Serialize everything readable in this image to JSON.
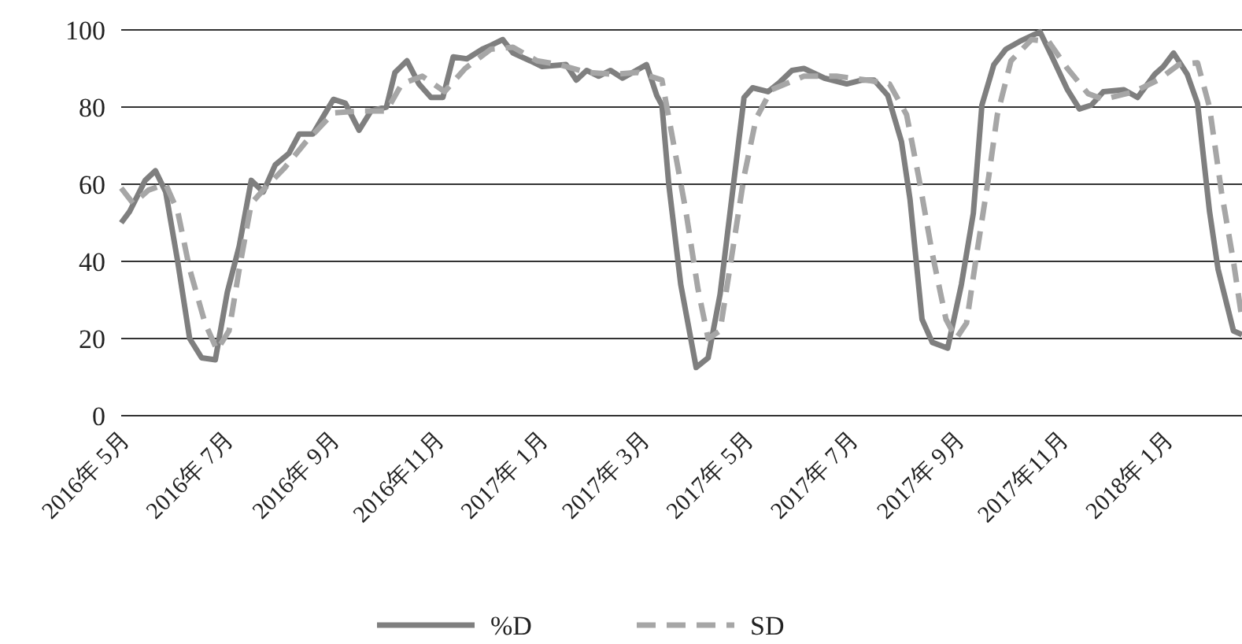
{
  "chart_data": {
    "type": "line",
    "xlim": [
      "2016-05-01",
      "2018-02-15"
    ],
    "ylim": [
      0,
      100
    ],
    "yticks": [
      0,
      20,
      40,
      60,
      80,
      100
    ],
    "grid": "y",
    "legend": "bottom",
    "xticks": [
      {
        "value": "2016-05-01",
        "label": "2016年 5月"
      },
      {
        "value": "2016-07-01",
        "label": "2016年 7月"
      },
      {
        "value": "2016-09-01",
        "label": "2016年 9月"
      },
      {
        "value": "2016-11-01",
        "label": "2016年11月"
      },
      {
        "value": "2017-01-01",
        "label": "2017年 1月"
      },
      {
        "value": "2017-03-01",
        "label": "2017年 3月"
      },
      {
        "value": "2017-05-01",
        "label": "2017年 5月"
      },
      {
        "value": "2017-07-01",
        "label": "2017年 7月"
      },
      {
        "value": "2017-09-01",
        "label": "2017年 9月"
      },
      {
        "value": "2017-11-01",
        "label": "2017年11月"
      },
      {
        "value": "2018-01-01",
        "label": "2018年 1月"
      }
    ],
    "series": [
      {
        "name": "%D",
        "color": "#7f7f7f",
        "line_style": "solid",
        "x": [
          "2016-05-01",
          "2016-05-06",
          "2016-05-15",
          "2016-05-21",
          "2016-05-27",
          "2016-06-03",
          "2016-06-10",
          "2016-06-17",
          "2016-06-25",
          "2016-07-02",
          "2016-07-09",
          "2016-07-16",
          "2016-07-23",
          "2016-07-30",
          "2016-08-07",
          "2016-08-13",
          "2016-08-21",
          "2016-08-29",
          "2016-09-02",
          "2016-09-09",
          "2016-09-17",
          "2016-09-24",
          "2016-10-03",
          "2016-10-08",
          "2016-10-15",
          "2016-10-22",
          "2016-10-29",
          "2016-11-05",
          "2016-11-11",
          "2016-11-19",
          "2016-11-28",
          "2016-12-03",
          "2016-12-10",
          "2016-12-16",
          "2016-12-26",
          "2017-01-02",
          "2017-01-16",
          "2017-01-22",
          "2017-01-28",
          "2017-02-04",
          "2017-02-11",
          "2017-02-18",
          "2017-03-04",
          "2017-03-10",
          "2017-03-13",
          "2017-03-17",
          "2017-03-24",
          "2017-04-02",
          "2017-04-09",
          "2017-04-16",
          "2017-04-30",
          "2017-05-05",
          "2017-05-14",
          "2017-05-21",
          "2017-05-28",
          "2017-06-04",
          "2017-06-16",
          "2017-06-29",
          "2017-07-08",
          "2017-07-15",
          "2017-07-23",
          "2017-07-31",
          "2017-08-05",
          "2017-08-12",
          "2017-08-18",
          "2017-08-27",
          "2017-09-04",
          "2017-09-11",
          "2017-09-16",
          "2017-09-23",
          "2017-09-30",
          "2017-10-08",
          "2017-10-20",
          "2017-10-27",
          "2017-11-05",
          "2017-11-12",
          "2017-11-19",
          "2017-11-26",
          "2017-12-08",
          "2017-12-16",
          "2017-12-26",
          "2017-12-31",
          "2018-01-06",
          "2018-01-14",
          "2018-01-20",
          "2018-01-27",
          "2018-02-01",
          "2018-02-10",
          "2018-02-15"
        ],
        "values": [
          50,
          53,
          61,
          63.5,
          58,
          40,
          20,
          15,
          14.5,
          32,
          44,
          61,
          58,
          65,
          68,
          73,
          73,
          79,
          82,
          81,
          74,
          79,
          80,
          89,
          92,
          86,
          82.5,
          82.5,
          93,
          92.5,
          95,
          96,
          97.5,
          94,
          92,
          90.5,
          91,
          87,
          89.5,
          88,
          89.5,
          87.5,
          91,
          83,
          80.5,
          60,
          34,
          12.5,
          15,
          31.5,
          82.5,
          85,
          84,
          86.5,
          89.5,
          90,
          87.5,
          86,
          87,
          87,
          83,
          71,
          56,
          25,
          19,
          17.5,
          34,
          52.5,
          80.5,
          91,
          95,
          97,
          99.5,
          93,
          84.5,
          79.5,
          80.5,
          84,
          84.5,
          82.5,
          88.5,
          90.5,
          94,
          88.5,
          81,
          53,
          38,
          22,
          21
        ]
      },
      {
        "name": "SD",
        "color": "#a6a6a6",
        "line_style": "dashed",
        "x": [
          "2016-05-01",
          "2016-05-08",
          "2016-05-17",
          "2016-05-27",
          "2016-06-03",
          "2016-06-10",
          "2016-06-19",
          "2016-06-26",
          "2016-07-03",
          "2016-07-09",
          "2016-07-16",
          "2016-07-24",
          "2016-08-04",
          "2016-08-17",
          "2016-09-02",
          "2016-09-19",
          "2016-10-03",
          "2016-10-12",
          "2016-10-24",
          "2016-11-06",
          "2016-11-18",
          "2016-12-03",
          "2016-12-16",
          "2016-12-30",
          "2017-01-12",
          "2017-01-28",
          "2017-02-13",
          "2017-02-27",
          "2017-03-13",
          "2017-03-20",
          "2017-03-27",
          "2017-04-03",
          "2017-04-09",
          "2017-04-16",
          "2017-04-23",
          "2017-04-30",
          "2017-05-07",
          "2017-05-16",
          "2017-06-04",
          "2017-06-23",
          "2017-07-11",
          "2017-07-24",
          "2017-08-03",
          "2017-08-10",
          "2017-08-18",
          "2017-08-26",
          "2017-09-01",
          "2017-09-07",
          "2017-09-13",
          "2017-09-20",
          "2017-09-25",
          "2017-10-03",
          "2017-10-15",
          "2017-10-25",
          "2017-11-05",
          "2017-11-17",
          "2017-11-26",
          "2017-12-14",
          "2017-12-28",
          "2018-01-09",
          "2018-01-20",
          "2018-01-27",
          "2018-02-03",
          "2018-02-10",
          "2018-02-15"
        ],
        "values": [
          59,
          55,
          58.5,
          60,
          53,
          38,
          24,
          17,
          22,
          38,
          55,
          59,
          64,
          71,
          78.5,
          79,
          79,
          86,
          88,
          84,
          90,
          95,
          95.5,
          92,
          91,
          89,
          88.5,
          89,
          87,
          70,
          53,
          33,
          20,
          22,
          42,
          62,
          77,
          84.5,
          88,
          88,
          87,
          86,
          78,
          62,
          42,
          25,
          20,
          24,
          42,
          62,
          78,
          92,
          97.5,
          97,
          90,
          83.5,
          82,
          84,
          87,
          91,
          91.5,
          80,
          58,
          40,
          25
        ]
      }
    ]
  }
}
